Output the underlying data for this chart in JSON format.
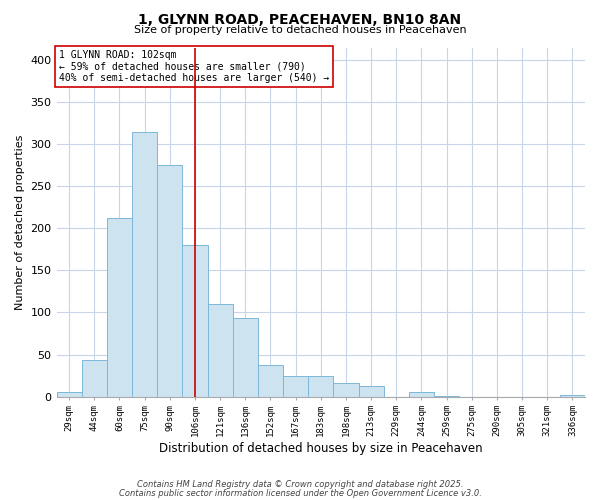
{
  "title_line1": "1, GLYNN ROAD, PEACEHAVEN, BN10 8AN",
  "title_line2": "Size of property relative to detached houses in Peacehaven",
  "xlabel": "Distribution of detached houses by size in Peacehaven",
  "ylabel": "Number of detached properties",
  "bar_labels": [
    "29sqm",
    "44sqm",
    "60sqm",
    "75sqm",
    "90sqm",
    "106sqm",
    "121sqm",
    "136sqm",
    "152sqm",
    "167sqm",
    "183sqm",
    "198sqm",
    "213sqm",
    "229sqm",
    "244sqm",
    "259sqm",
    "275sqm",
    "290sqm",
    "305sqm",
    "321sqm",
    "336sqm"
  ],
  "bar_values": [
    5,
    44,
    212,
    315,
    275,
    180,
    110,
    93,
    38,
    24,
    24,
    16,
    13,
    0,
    5,
    1,
    0,
    0,
    0,
    0,
    2
  ],
  "bar_color": "#cde4f0",
  "bar_edge_color": "#7db8d8",
  "vline_x_idx": 5,
  "vline_color": "#cc0000",
  "annotation_text": "1 GLYNN ROAD: 102sqm\n← 59% of detached houses are smaller (790)\n40% of semi-detached houses are larger (540) →",
  "ylim": [
    0,
    415
  ],
  "yticks": [
    0,
    50,
    100,
    150,
    200,
    250,
    300,
    350,
    400
  ],
  "footnote_line1": "Contains HM Land Registry data © Crown copyright and database right 2025.",
  "footnote_line2": "Contains public sector information licensed under the Open Government Licence v3.0.",
  "background_color": "#ffffff",
  "grid_color": "#c8d4e8"
}
